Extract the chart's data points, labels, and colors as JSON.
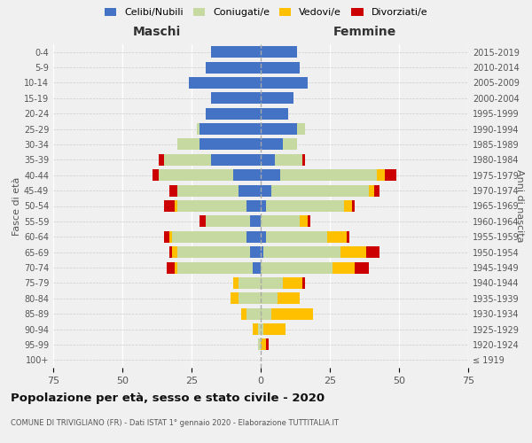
{
  "age_groups": [
    "100+",
    "95-99",
    "90-94",
    "85-89",
    "80-84",
    "75-79",
    "70-74",
    "65-69",
    "60-64",
    "55-59",
    "50-54",
    "45-49",
    "40-44",
    "35-39",
    "30-34",
    "25-29",
    "20-24",
    "15-19",
    "10-14",
    "5-9",
    "0-4"
  ],
  "birth_years": [
    "≤ 1919",
    "1920-1924",
    "1925-1929",
    "1930-1934",
    "1935-1939",
    "1940-1944",
    "1945-1949",
    "1950-1954",
    "1955-1959",
    "1960-1964",
    "1965-1969",
    "1970-1974",
    "1975-1979",
    "1980-1984",
    "1985-1989",
    "1990-1994",
    "1995-1999",
    "2000-2004",
    "2005-2009",
    "2010-2014",
    "2015-2019"
  ],
  "maschi": {
    "celibi": [
      0,
      0,
      0,
      0,
      0,
      0,
      3,
      4,
      5,
      4,
      5,
      8,
      10,
      18,
      22,
      22,
      20,
      18,
      26,
      20,
      18
    ],
    "coniugati": [
      0,
      1,
      1,
      5,
      8,
      8,
      27,
      26,
      27,
      16,
      25,
      22,
      27,
      17,
      8,
      1,
      0,
      0,
      0,
      0,
      0
    ],
    "vedovi": [
      0,
      0,
      2,
      2,
      3,
      2,
      1,
      2,
      1,
      0,
      1,
      0,
      0,
      0,
      0,
      0,
      0,
      0,
      0,
      0,
      0
    ],
    "divorziati": [
      0,
      0,
      0,
      0,
      0,
      0,
      3,
      1,
      2,
      2,
      4,
      3,
      2,
      2,
      0,
      0,
      0,
      0,
      0,
      0,
      0
    ]
  },
  "femmine": {
    "nubili": [
      0,
      0,
      0,
      0,
      0,
      0,
      0,
      1,
      2,
      0,
      2,
      4,
      7,
      5,
      8,
      13,
      10,
      12,
      17,
      14,
      13
    ],
    "coniugate": [
      0,
      0,
      1,
      4,
      6,
      8,
      26,
      28,
      22,
      14,
      28,
      35,
      35,
      10,
      5,
      3,
      0,
      0,
      0,
      0,
      0
    ],
    "vedove": [
      0,
      2,
      8,
      15,
      8,
      7,
      8,
      9,
      7,
      3,
      3,
      2,
      3,
      0,
      0,
      0,
      0,
      0,
      0,
      0,
      0
    ],
    "divorziate": [
      0,
      1,
      0,
      0,
      0,
      1,
      5,
      5,
      1,
      1,
      1,
      2,
      4,
      1,
      0,
      0,
      0,
      0,
      0,
      0,
      0
    ]
  },
  "colors": {
    "celibi": "#4472c4",
    "coniugati": "#c5d9a0",
    "vedovi": "#ffc000",
    "divorziati": "#cc0000"
  },
  "xlim": 75,
  "title": "Popolazione per età, sesso e stato civile - 2020",
  "subtitle": "COMUNE DI TRIVIGLIANO (FR) - Dati ISTAT 1° gennaio 2020 - Elaborazione TUTTITALIA.IT",
  "ylabel_left": "Fasce di età",
  "ylabel_right": "Anni di nascita",
  "xlabel_left": "Maschi",
  "xlabel_right": "Femmine",
  "bg_color": "#f0f0f0"
}
